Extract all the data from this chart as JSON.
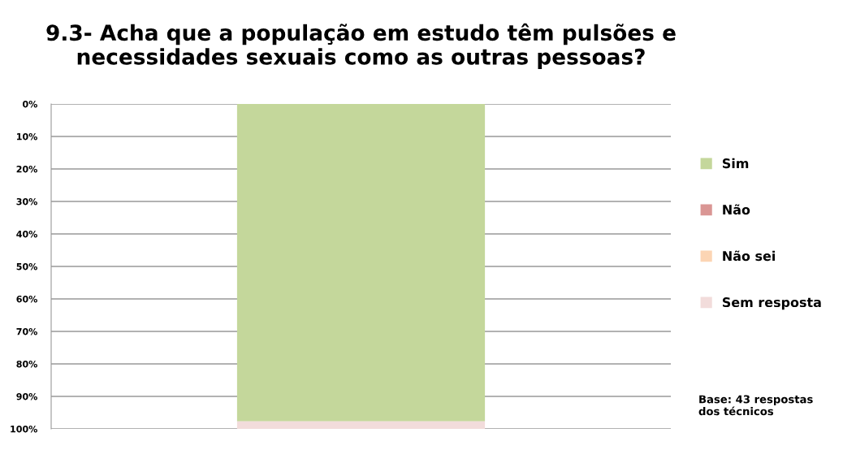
{
  "chart_data": {
    "type": "bar",
    "stacked": true,
    "title": "9.3- Acha que a população em estudo têm pulsões e\nnecessidades sexuais como as outras pessoas?",
    "categories": [
      null
    ],
    "series": [
      {
        "name": "Sim",
        "color": "#c4d79b",
        "values": [
          97.7
        ]
      },
      {
        "name": "Não",
        "color": "#da9694",
        "values": [
          0
        ]
      },
      {
        "name": "Não sei",
        "color": "#fcd5b4",
        "values": [
          0
        ]
      },
      {
        "name": "Sem resposta",
        "color": "#f2dcdb",
        "values": [
          2.3
        ]
      }
    ],
    "ylim": [
      100,
      0
    ],
    "yticks": [
      {
        "value": 0,
        "label": "0%"
      },
      {
        "value": 10,
        "label": "10%"
      },
      {
        "value": 20,
        "label": "20%"
      },
      {
        "value": 30,
        "label": "30%"
      },
      {
        "value": 40,
        "label": "40%"
      },
      {
        "value": 50,
        "label": "50%"
      },
      {
        "value": 60,
        "label": "60%"
      },
      {
        "value": 70,
        "label": "70%"
      },
      {
        "value": 80,
        "label": "80%"
      },
      {
        "value": 90,
        "label": "90%"
      },
      {
        "value": 100,
        "label": "100%"
      }
    ],
    "grid": "y",
    "legend": "right",
    "annotations": [
      "Base: 43 respostas\ndos técnicos"
    ]
  }
}
